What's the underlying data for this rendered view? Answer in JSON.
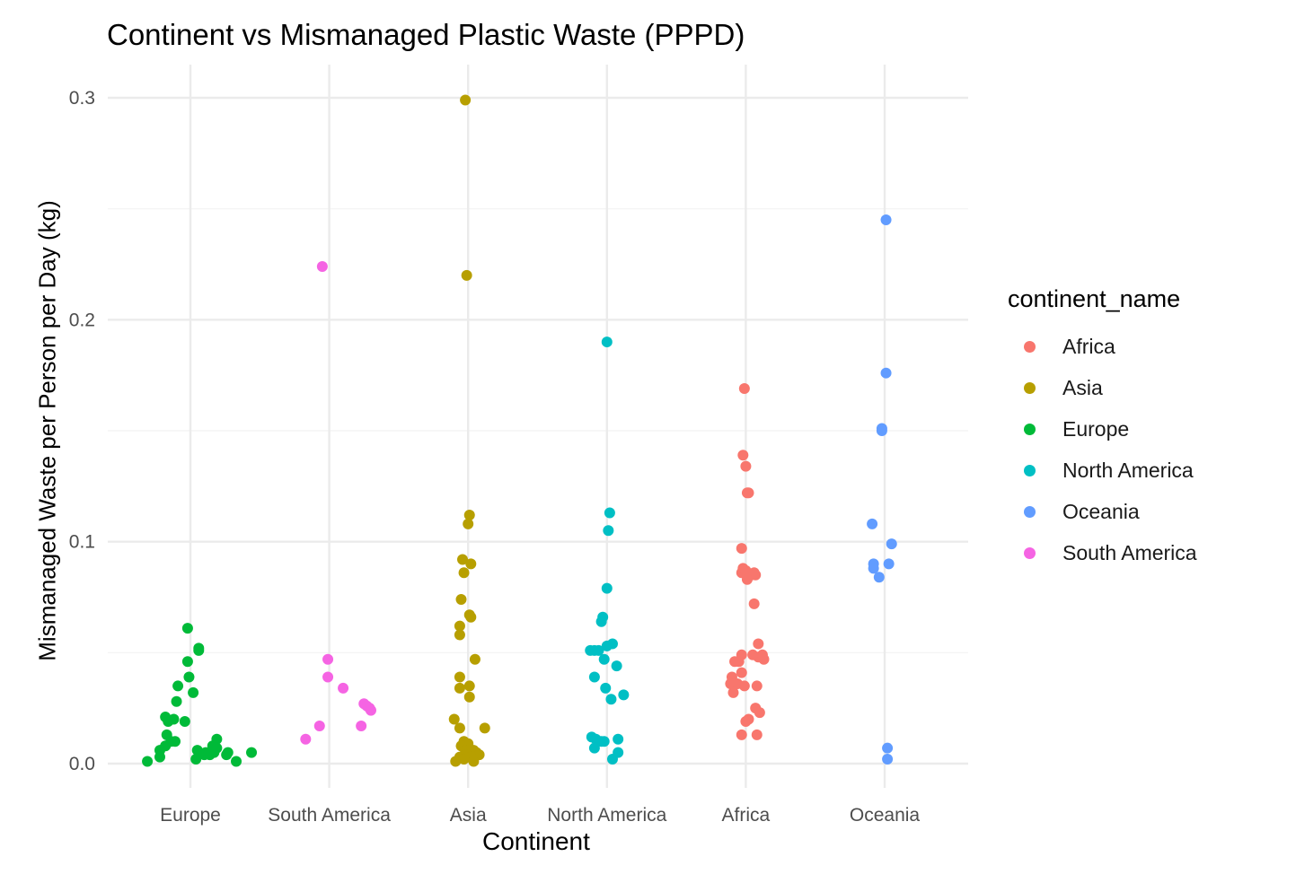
{
  "chart_data": {
    "type": "scatter",
    "title": "Continent vs Mismanaged Plastic Waste (PPPD)",
    "xlabel": "Continent",
    "ylabel": "Mismanaged Waste per Person per Day (kg)",
    "categories": [
      "Europe",
      "South America",
      "Asia",
      "North America",
      "Africa",
      "Oceania"
    ],
    "y_ticks": [
      "0.0",
      "0.1",
      "0.2",
      "0.3"
    ],
    "ylim": [
      -0.011,
      0.32
    ],
    "grid": true,
    "legend": {
      "title": "continent_name",
      "position": "right",
      "entries": [
        "Africa",
        "Asia",
        "Europe",
        "North America",
        "Oceania",
        "South America"
      ]
    },
    "colors": {
      "Africa": "#F8766D",
      "Asia": "#B79F00",
      "Europe": "#00BA38",
      "North America": "#00BFC4",
      "Oceania": "#619CFF",
      "South America": "#F564E3"
    },
    "series": [
      {
        "name": "Europe",
        "points": [
          [
            -0.31,
            0.001
          ],
          [
            -0.22,
            0.003
          ],
          [
            -0.22,
            0.006
          ],
          [
            -0.18,
            0.008
          ],
          [
            -0.17,
            0.013
          ],
          [
            -0.18,
            0.021
          ],
          [
            -0.16,
            0.019
          ],
          [
            -0.14,
            0.01
          ],
          [
            -0.11,
            0.01
          ],
          [
            -0.12,
            0.02
          ],
          [
            -0.1,
            0.028
          ],
          [
            -0.09,
            0.035
          ],
          [
            -0.04,
            0.019
          ],
          [
            -0.02,
            0.046
          ],
          [
            -0.01,
            0.039
          ],
          [
            -0.02,
            0.061
          ],
          [
            0.02,
            0.032
          ],
          [
            0.06,
            0.051
          ],
          [
            0.06,
            0.052
          ],
          [
            0.05,
            0.006
          ],
          [
            0.04,
            0.002
          ],
          [
            0.1,
            0.004
          ],
          [
            0.11,
            0.005
          ],
          [
            0.16,
            0.008
          ],
          [
            0.17,
            0.005
          ],
          [
            0.19,
            0.007
          ],
          [
            0.19,
            0.011
          ],
          [
            0.26,
            0.004
          ],
          [
            0.27,
            0.005
          ],
          [
            0.33,
            0.001
          ],
          [
            0.44,
            0.005
          ],
          [
            0.14,
            0.004
          ]
        ]
      },
      {
        "name": "South America",
        "points": [
          [
            -0.17,
            0.011
          ],
          [
            -0.07,
            0.017
          ],
          [
            -0.05,
            0.224
          ],
          [
            -0.01,
            0.047
          ],
          [
            -0.01,
            0.039
          ],
          [
            0.1,
            0.034
          ],
          [
            0.23,
            0.017
          ],
          [
            0.25,
            0.027
          ],
          [
            0.27,
            0.026
          ],
          [
            0.29,
            0.025
          ],
          [
            0.3,
            0.024
          ]
        ]
      },
      {
        "name": "Asia",
        "points": [
          [
            -0.02,
            0.299
          ],
          [
            -0.01,
            0.22
          ],
          [
            0.01,
            0.112
          ],
          [
            0.0,
            0.108
          ],
          [
            -0.04,
            0.092
          ],
          [
            0.02,
            0.09
          ],
          [
            -0.03,
            0.086
          ],
          [
            -0.05,
            0.074
          ],
          [
            0.01,
            0.067
          ],
          [
            0.02,
            0.066
          ],
          [
            -0.06,
            0.062
          ],
          [
            -0.06,
            0.058
          ],
          [
            0.05,
            0.047
          ],
          [
            -0.06,
            0.039
          ],
          [
            -0.06,
            0.034
          ],
          [
            0.01,
            0.035
          ],
          [
            0.01,
            0.03
          ],
          [
            -0.1,
            0.02
          ],
          [
            -0.06,
            0.016
          ],
          [
            0.12,
            0.016
          ],
          [
            -0.03,
            0.01
          ],
          [
            0.0,
            0.009
          ],
          [
            -0.05,
            0.008
          ],
          [
            -0.02,
            0.006
          ],
          [
            0.04,
            0.006
          ],
          [
            0.06,
            0.005
          ],
          [
            -0.01,
            0.004
          ],
          [
            0.08,
            0.004
          ],
          [
            -0.06,
            0.003
          ],
          [
            0.02,
            0.003
          ],
          [
            -0.03,
            0.002
          ],
          [
            -0.09,
            0.001
          ],
          [
            0.04,
            0.001
          ]
        ]
      },
      {
        "name": "North America",
        "points": [
          [
            0.0,
            0.19
          ],
          [
            0.02,
            0.113
          ],
          [
            0.01,
            0.105
          ],
          [
            0.0,
            0.079
          ],
          [
            -0.03,
            0.066
          ],
          [
            -0.04,
            0.064
          ],
          [
            -0.12,
            0.051
          ],
          [
            -0.09,
            0.051
          ],
          [
            -0.06,
            0.051
          ],
          [
            0.0,
            0.053
          ],
          [
            0.04,
            0.054
          ],
          [
            -0.02,
            0.047
          ],
          [
            0.07,
            0.044
          ],
          [
            -0.09,
            0.039
          ],
          [
            -0.01,
            0.034
          ],
          [
            0.12,
            0.031
          ],
          [
            0.03,
            0.029
          ],
          [
            -0.11,
            0.012
          ],
          [
            -0.08,
            0.011
          ],
          [
            -0.04,
            0.01
          ],
          [
            -0.02,
            0.01
          ],
          [
            0.08,
            0.011
          ],
          [
            -0.09,
            0.007
          ],
          [
            0.08,
            0.005
          ],
          [
            0.04,
            0.002
          ]
        ]
      },
      {
        "name": "Africa",
        "points": [
          [
            -0.01,
            0.169
          ],
          [
            -0.02,
            0.139
          ],
          [
            0.0,
            0.134
          ],
          [
            0.01,
            0.122
          ],
          [
            0.02,
            0.122
          ],
          [
            -0.03,
            0.097
          ],
          [
            -0.03,
            0.086
          ],
          [
            -0.02,
            0.088
          ],
          [
            0.0,
            0.087
          ],
          [
            0.01,
            0.086
          ],
          [
            0.04,
            0.085
          ],
          [
            0.06,
            0.086
          ],
          [
            0.07,
            0.085
          ],
          [
            0.01,
            0.083
          ],
          [
            0.06,
            0.072
          ],
          [
            0.09,
            0.054
          ],
          [
            0.09,
            0.048
          ],
          [
            0.12,
            0.049
          ],
          [
            0.13,
            0.047
          ],
          [
            0.05,
            0.049
          ],
          [
            -0.03,
            0.049
          ],
          [
            -0.05,
            0.046
          ],
          [
            -0.08,
            0.046
          ],
          [
            -0.03,
            0.041
          ],
          [
            -0.1,
            0.039
          ],
          [
            -0.1,
            0.037
          ],
          [
            -0.11,
            0.036
          ],
          [
            -0.06,
            0.036
          ],
          [
            -0.09,
            0.032
          ],
          [
            -0.01,
            0.035
          ],
          [
            0.08,
            0.035
          ],
          [
            0.07,
            0.025
          ],
          [
            0.1,
            0.023
          ],
          [
            0.02,
            0.02
          ],
          [
            0.0,
            0.019
          ],
          [
            -0.03,
            0.013
          ],
          [
            0.08,
            0.013
          ]
        ]
      },
      {
        "name": "Oceania",
        "points": [
          [
            0.01,
            0.245
          ],
          [
            0.01,
            0.176
          ],
          [
            -0.02,
            0.151
          ],
          [
            -0.02,
            0.15
          ],
          [
            -0.09,
            0.108
          ],
          [
            0.05,
            0.099
          ],
          [
            -0.08,
            0.09
          ],
          [
            0.03,
            0.09
          ],
          [
            -0.08,
            0.088
          ],
          [
            -0.04,
            0.084
          ],
          [
            0.02,
            0.007
          ],
          [
            0.02,
            0.002
          ]
        ]
      }
    ]
  }
}
